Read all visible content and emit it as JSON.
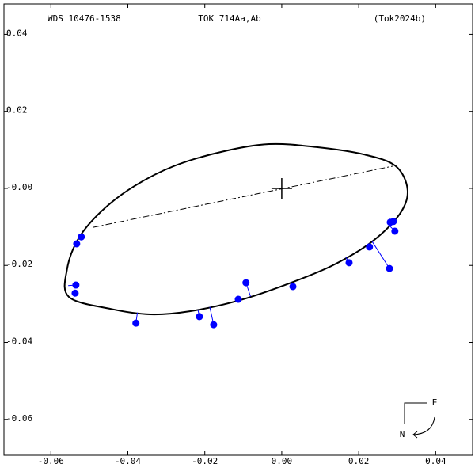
{
  "chart_data": {
    "type": "scatter",
    "title": "TOK 714Aa,Ab",
    "left_label": "WDS 10476-1538",
    "right_label": "(Tok2024b)",
    "compass": {
      "east": "E",
      "north": "N"
    },
    "xlim": [
      -0.0722,
      0.0496
    ],
    "ylim": [
      -0.0693,
      0.0479
    ],
    "xticks": [
      -0.06,
      -0.04,
      -0.02,
      {
        "value": 0,
        "label": "0.00"
      },
      0.02,
      0.04
    ],
    "yticks": [
      0.04,
      0.02,
      {
        "value": 0,
        "label": "-0.00"
      },
      -0.02,
      -0.04,
      -0.06
    ],
    "orbit": {
      "color": "#000000",
      "x": [
        -0.0558,
        -0.0527,
        -0.0465,
        -0.0383,
        -0.028,
        -0.0156,
        -0.0033,
        0.0091,
        0.0214,
        0.0296,
        0.0327,
        0.0307,
        0.0235,
        0.0132,
        0.0008,
        -0.0115,
        -0.0239,
        -0.0342,
        -0.0444,
        -0.0553
      ],
      "y": [
        -0.021,
        -0.0128,
        -0.0056,
        0.0006,
        0.0058,
        0.0095,
        0.0115,
        0.0107,
        0.0088,
        0.0058,
        -0.0004,
        -0.0066,
        -0.0138,
        -0.02,
        -0.0251,
        -0.0292,
        -0.0319,
        -0.0327,
        -0.0313,
        -0.0282
      ]
    },
    "line_of_nodes": {
      "x": [
        -0.049,
        0.029
      ],
      "y": [
        -0.0101,
        0.0058
      ]
    },
    "observations": {
      "color": "#0000ff",
      "x": [
        -0.0521,
        -0.0533,
        -0.0535,
        -0.0537,
        -0.0379,
        -0.0214,
        -0.0177,
        -0.0113,
        -0.0093,
        0.0029,
        0.0175,
        0.0228,
        0.028,
        0.0282,
        0.029,
        0.0294
      ],
      "y": [
        -0.0126,
        -0.0144,
        -0.0251,
        -0.0272,
        -0.035,
        -0.0333,
        -0.0354,
        -0.0288,
        -0.0245,
        -0.0255,
        -0.0193,
        -0.0152,
        -0.0208,
        -0.0088,
        -0.0086,
        -0.0111
      ]
    }
  }
}
